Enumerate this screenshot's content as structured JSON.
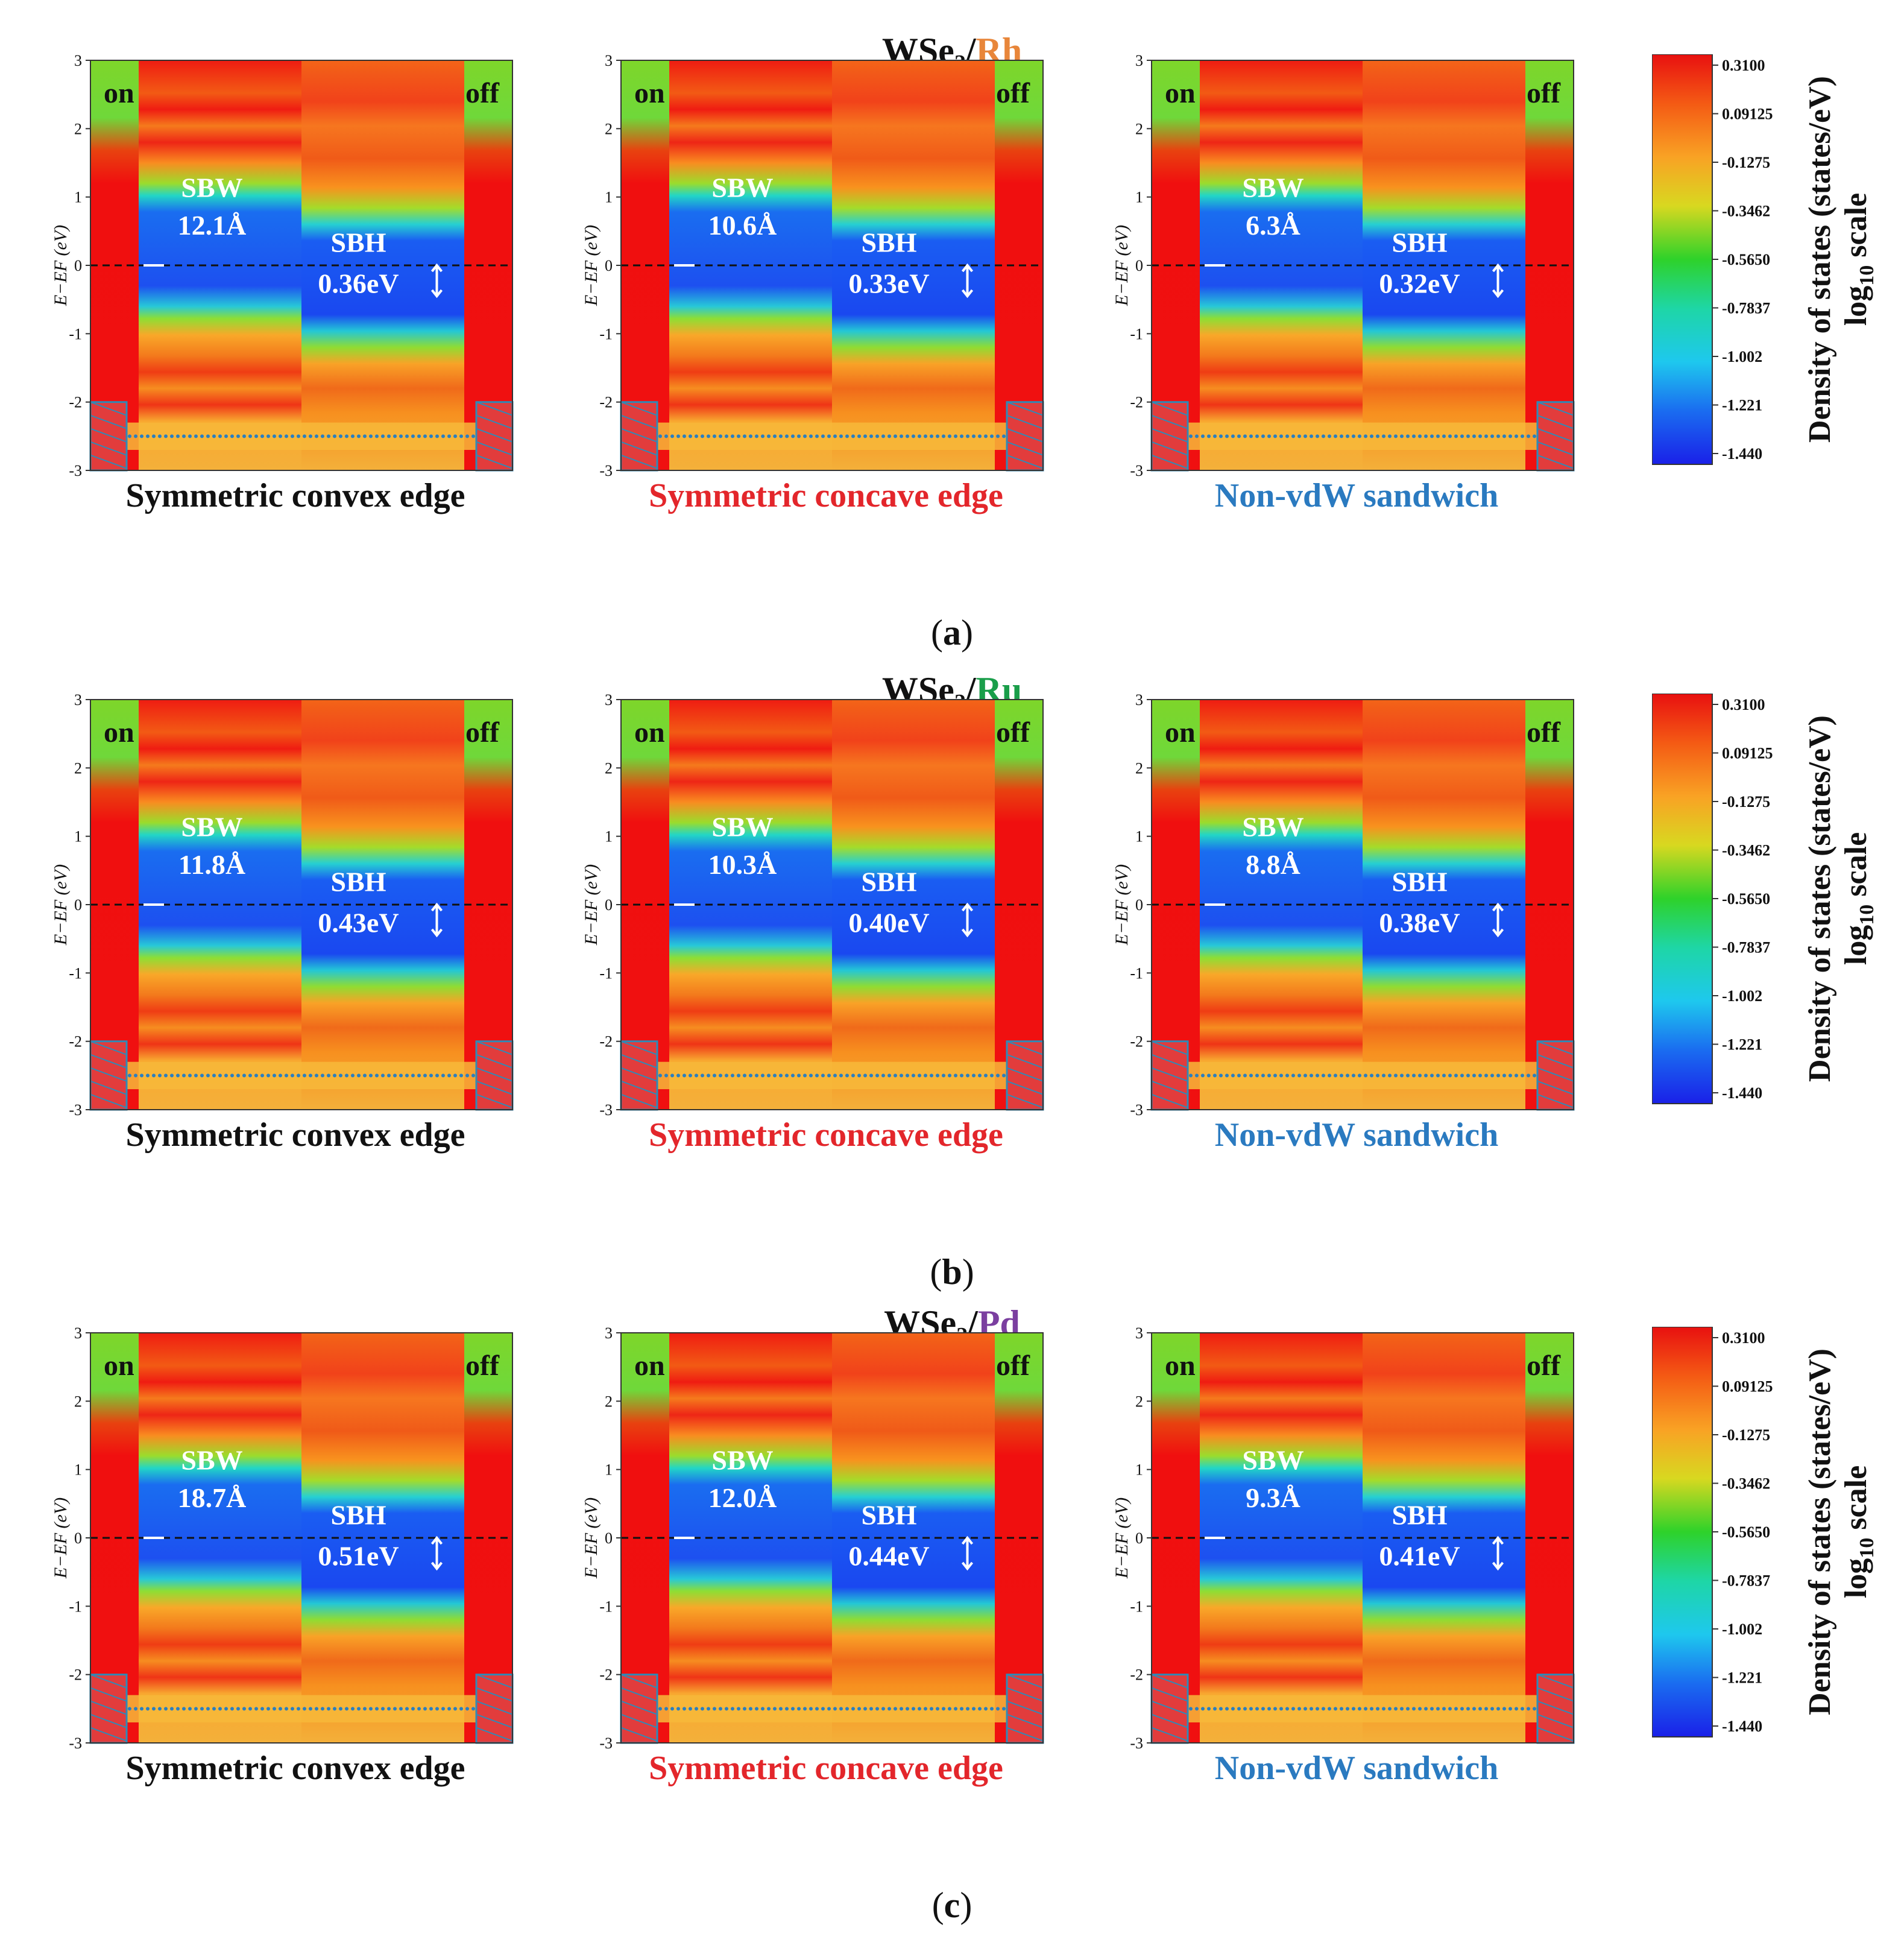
{
  "colors": {
    "Rh": "#e8863a",
    "Ru": "#1a9e4a",
    "Pd": "#7b3fa0",
    "convex": "#111111",
    "concave": "#e3262b",
    "sandwich": "#2a7ac0"
  },
  "colorbar": {
    "ticks": [
      "0.3100",
      "0.09125",
      "-0.1275",
      "-0.3462",
      "-0.5650",
      "-0.7837",
      "-1.002",
      "-1.221",
      "-1.440"
    ],
    "label_line1": "Density of states (states/eV)",
    "label_line2_prefix": "log",
    "label_line2_sub": "10",
    "label_line2_suffix": " scale"
  },
  "chart_data": [
    {
      "type": "heatmap",
      "row": "a",
      "row_title_prefix": "WSe",
      "row_title_sub": "2",
      "row_title_slash": "/",
      "metal": "Rh",
      "sub_label": "a",
      "ylabel": "E−EF (eV)",
      "ylim": [
        -3,
        3
      ],
      "yticks": [
        "3",
        "2",
        "1",
        "0",
        "-1",
        "-2",
        "-3"
      ],
      "panels": [
        {
          "caption": "Symmetric convex edge",
          "style": "convex",
          "on": "on",
          "off": "off",
          "sbw_label": "SBW",
          "sbw": "12.1Å",
          "sbh_label": "SBH",
          "sbh": "0.36eV"
        },
        {
          "caption": "Symmetric concave edge",
          "style": "concave",
          "on": "on",
          "off": "off",
          "sbw_label": "SBW",
          "sbw": "10.6Å",
          "sbh_label": "SBH",
          "sbh": "0.33eV"
        },
        {
          "caption": "Non-vdW sandwich",
          "style": "sandwich",
          "on": "on",
          "off": "off",
          "sbw_label": "SBW",
          "sbw": "6.3Å",
          "sbh_label": "SBH",
          "sbh": "0.32eV"
        }
      ]
    },
    {
      "type": "heatmap",
      "row": "b",
      "row_title_prefix": "WSe",
      "row_title_sub": "2",
      "row_title_slash": "/",
      "metal": "Ru",
      "sub_label": "b",
      "ylabel": "E−EF (eV)",
      "ylim": [
        -3,
        3
      ],
      "yticks": [
        "3",
        "2",
        "1",
        "0",
        "-1",
        "-2",
        "-3"
      ],
      "panels": [
        {
          "caption": "Symmetric convex edge",
          "style": "convex",
          "on": "on",
          "off": "off",
          "sbw_label": "SBW",
          "sbw": "11.8Å",
          "sbh_label": "SBH",
          "sbh": "0.43eV"
        },
        {
          "caption": "Symmetric concave edge",
          "style": "concave",
          "on": "on",
          "off": "off",
          "sbw_label": "SBW",
          "sbw": "10.3Å",
          "sbh_label": "SBH",
          "sbh": "0.40eV"
        },
        {
          "caption": "Non-vdW sandwich",
          "style": "sandwich",
          "on": "on",
          "off": "off",
          "sbw_label": "SBW",
          "sbw": "8.8Å",
          "sbh_label": "SBH",
          "sbh": "0.38eV"
        }
      ]
    },
    {
      "type": "heatmap",
      "row": "c",
      "row_title_prefix": "WSe",
      "row_title_sub": "2",
      "row_title_slash": "/",
      "metal": "Pd",
      "sub_label": "c",
      "ylabel": "E−EF (eV)",
      "ylim": [
        -3,
        3
      ],
      "yticks": [
        "3",
        "2",
        "1",
        "0",
        "-1",
        "-2",
        "-3"
      ],
      "panels": [
        {
          "caption": "Symmetric convex edge",
          "style": "convex",
          "on": "on",
          "off": "off",
          "sbw_label": "SBW",
          "sbw": "18.7Å",
          "sbh_label": "SBH",
          "sbh": "0.51eV"
        },
        {
          "caption": "Symmetric concave edge",
          "style": "concave",
          "on": "on",
          "off": "off",
          "sbw_label": "SBW",
          "sbw": "12.0Å",
          "sbh_label": "SBH",
          "sbh": "0.44eV"
        },
        {
          "caption": "Non-vdW sandwich",
          "style": "sandwich",
          "on": "on",
          "off": "off",
          "sbw_label": "SBW",
          "sbw": "9.3Å",
          "sbh_label": "SBH",
          "sbh": "0.41eV"
        }
      ]
    }
  ]
}
